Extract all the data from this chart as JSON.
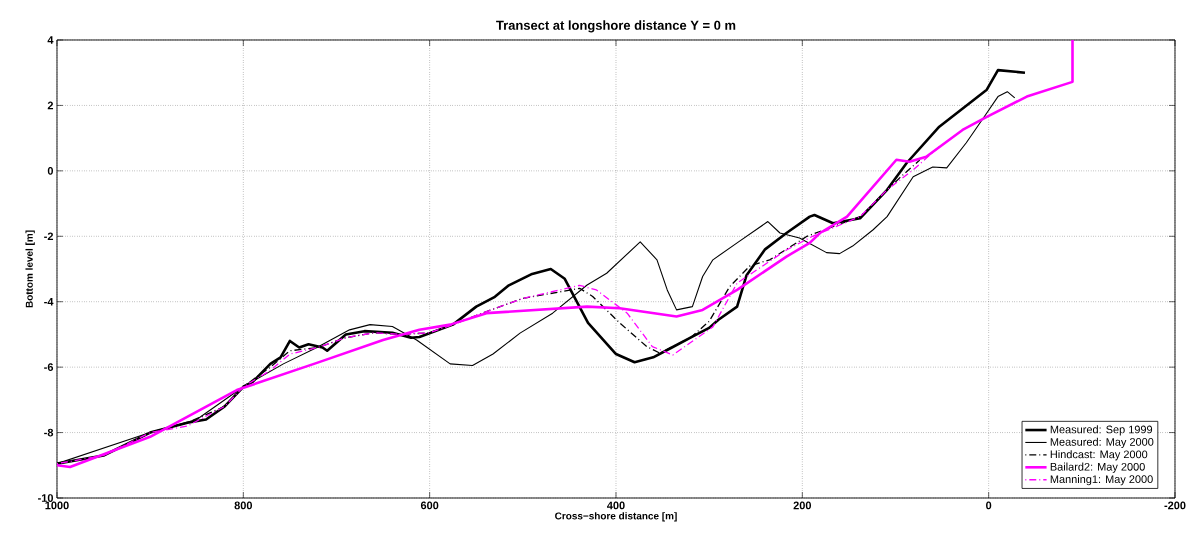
{
  "chart_data": {
    "type": "line",
    "title": "Transect at longshore distance Y = 0 m",
    "xlabel": "Cross−shore distance [m]",
    "ylabel": "Bottom level [m]",
    "xlim": [
      1000,
      -200
    ],
    "ylim": [
      -10,
      4
    ],
    "xticks": [
      1000,
      800,
      600,
      400,
      200,
      0,
      -200
    ],
    "yticks": [
      -10,
      -8,
      -6,
      -4,
      -2,
      0,
      2,
      4
    ],
    "grid": true,
    "legend": "bottom right",
    "series": [
      {
        "name": "Measured: Sep 1999",
        "color": "#000000",
        "line_style": "solid",
        "x": [
          1000,
          950,
          900,
          860,
          840,
          820,
          800,
          790,
          771,
          760,
          750,
          740,
          730,
          715,
          710,
          690,
          670,
          640,
          620,
          611,
          575,
          550,
          530,
          515,
          490,
          470,
          455,
          430,
          400,
          380,
          360,
          340,
          320,
          300,
          290,
          270,
          260,
          240,
          217,
          192,
          187,
          167,
          138,
          109,
          88,
          53,
          2,
          -10,
          -39
        ],
        "values": [
          -8.95,
          -8.7,
          -8.0,
          -7.7,
          -7.6,
          -7.2,
          -6.6,
          -6.45,
          -5.9,
          -5.7,
          -5.2,
          -5.4,
          -5.3,
          -5.4,
          -5.5,
          -5.0,
          -4.9,
          -4.95,
          -5.1,
          -5.08,
          -4.7,
          -4.15,
          -3.85,
          -3.5,
          -3.15,
          -3.0,
          -3.3,
          -4.65,
          -5.6,
          -5.85,
          -5.7,
          -5.4,
          -5.1,
          -4.8,
          -4.55,
          -4.15,
          -3.2,
          -2.4,
          -1.9,
          -1.4,
          -1.35,
          -1.6,
          -1.45,
          -0.58,
          0.24,
          1.35,
          2.48,
          3.08,
          3.0
        ]
      },
      {
        "name": "Measured: May 2000",
        "color": "#000000",
        "line_style": "solid",
        "x": [
          1000,
          900,
          850,
          800,
          757,
          721,
          686,
          664,
          640,
          614,
          578,
          554,
          532,
          503,
          468,
          431,
          410,
          374,
          356,
          345,
          335,
          318,
          307,
          296,
          270,
          237,
          224,
          203,
          174,
          160,
          146,
          124,
          109,
          81,
          60,
          45,
          24,
          2,
          -10,
          -20,
          -28
        ],
        "values": [
          -8.95,
          -8.0,
          -7.6,
          -6.6,
          -5.9,
          -5.4,
          -4.86,
          -4.7,
          -4.76,
          -5.17,
          -5.9,
          -5.95,
          -5.6,
          -4.96,
          -4.35,
          -3.49,
          -3.13,
          -2.17,
          -2.72,
          -3.64,
          -4.25,
          -4.15,
          -3.23,
          -2.72,
          -2.2,
          -1.55,
          -1.9,
          -2.05,
          -2.5,
          -2.53,
          -2.3,
          -1.8,
          -1.4,
          -0.18,
          0.12,
          0.09,
          0.86,
          1.77,
          2.27,
          2.42,
          2.23
        ]
      },
      {
        "name": "Hindcast: May 2000",
        "color": "#000000",
        "line_style": "dashdot",
        "x": [
          1000,
          950,
          900,
          860,
          820,
          800,
          771,
          750,
          720,
          690,
          660,
          630,
          600,
          575,
          539,
          500,
          439,
          425,
          396,
          367,
          353,
          320,
          300,
          278,
          256,
          235,
          195,
          138,
          95,
          74
        ],
        "values": [
          -8.95,
          -8.7,
          -8.0,
          -7.7,
          -7.2,
          -6.6,
          -6.0,
          -5.5,
          -5.4,
          -5.1,
          -4.95,
          -5.0,
          -4.95,
          -4.7,
          -4.3,
          -3.9,
          -3.59,
          -3.84,
          -4.65,
          -5.37,
          -5.57,
          -5.1,
          -4.6,
          -3.54,
          -2.9,
          -2.72,
          -2.0,
          -1.4,
          -0.2,
          0.33
        ]
      },
      {
        "name": "Bailard2: May 2000",
        "color": "#ff00ff",
        "line_style": "solid",
        "x": [
          1000,
          986,
          900,
          807,
          721,
          650,
          611,
          578,
          539,
          431,
          396,
          335,
          307,
          270,
          217,
          192,
          181,
          152,
          99,
          85,
          67,
          28,
          2,
          -41,
          -90,
          -90
        ],
        "values": [
          -9.0,
          -9.05,
          -8.13,
          -6.7,
          -5.87,
          -5.17,
          -4.86,
          -4.7,
          -4.35,
          -4.15,
          -4.2,
          -4.45,
          -4.25,
          -3.64,
          -2.62,
          -2.2,
          -1.9,
          -1.4,
          0.34,
          0.28,
          0.43,
          1.25,
          1.65,
          2.27,
          2.72,
          4.0
        ]
      },
      {
        "name": "Manning1: May 2000",
        "color": "#ff00ff",
        "line_style": "dashdot",
        "x": [
          1000,
          950,
          900,
          860,
          820,
          800,
          771,
          750,
          720,
          690,
          660,
          630,
          600,
          575,
          539,
          500,
          439,
          421,
          388,
          361,
          339,
          296,
          270,
          217,
          189,
          138,
          109,
          81,
          53
        ],
        "values": [
          -8.95,
          -8.7,
          -8.0,
          -7.8,
          -7.2,
          -6.6,
          -6.1,
          -5.6,
          -5.4,
          -5.1,
          -4.95,
          -5.0,
          -4.95,
          -4.7,
          -4.3,
          -3.9,
          -3.5,
          -3.64,
          -4.35,
          -5.37,
          -5.63,
          -4.77,
          -3.43,
          -2.42,
          -2.0,
          -1.4,
          -0.58,
          0.03,
          0.74
        ]
      }
    ]
  }
}
